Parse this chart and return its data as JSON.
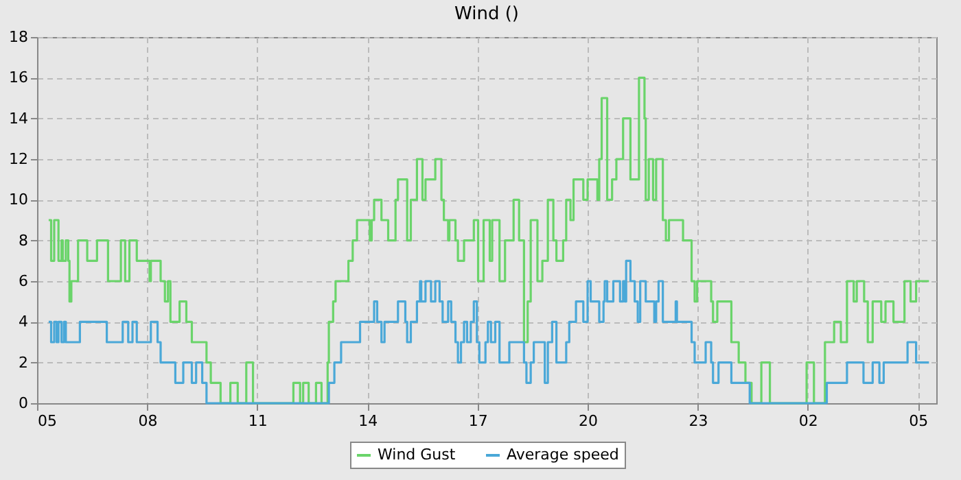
{
  "chart_data": {
    "type": "step",
    "title": "Wind ()",
    "xlim": [
      "--01-01T05:00",
      "--01-02T05:30"
    ],
    "xticks": [
      {
        "value": "--01-01T05:00",
        "label": "05"
      },
      {
        "value": "--01-01T08:00",
        "label": "08"
      },
      {
        "value": "--01-01T11:00",
        "label": "11"
      },
      {
        "value": "--01-01T14:00",
        "label": "14"
      },
      {
        "value": "--01-01T17:00",
        "label": "17"
      },
      {
        "value": "--01-01T20:00",
        "label": "20"
      },
      {
        "value": "--01-01T23:00",
        "label": "23"
      },
      {
        "value": "--01-02T02:00",
        "label": "02"
      },
      {
        "value": "--01-02T05:00",
        "label": "05"
      }
    ],
    "ylim": [
      0,
      18
    ],
    "yticks": [
      0,
      2,
      4,
      6,
      8,
      10,
      12,
      14,
      16,
      18
    ],
    "grid": true,
    "legend": "bottom",
    "series": [
      {
        "name": "Wind Gust",
        "color": "#6ad46a",
        "x": [
          "--01-01T05:19",
          "--01-01T05:23",
          "--01-01T05:28",
          "--01-01T05:35",
          "--01-01T05:40",
          "--01-01T05:42",
          "--01-01T05:47",
          "--01-01T05:51",
          "--01-01T05:53",
          "--01-01T05:56",
          "--01-01T06:07",
          "--01-01T06:22",
          "--01-01T06:38",
          "--01-01T06:56",
          "--01-01T07:17",
          "--01-01T07:24",
          "--01-01T07:31",
          "--01-01T07:43",
          "--01-01T08:04",
          "--01-01T08:06",
          "--01-01T08:22",
          "--01-01T08:29",
          "--01-01T08:34",
          "--01-01T08:38",
          "--01-01T08:53",
          "--01-01T09:04",
          "--01-01T09:13",
          "--01-01T09:37",
          "--01-01T09:44",
          "--01-01T10:00",
          "--01-01T10:16",
          "--01-01T10:28",
          "--01-01T10:42",
          "--01-01T10:53",
          "--01-01T11:59",
          "--01-01T12:10",
          "--01-01T12:15",
          "--01-01T12:24",
          "--01-01T12:36",
          "--01-01T12:45",
          "--01-01T12:55",
          "--01-01T12:57",
          "--01-01T13:04",
          "--01-01T13:08",
          "--01-01T13:29",
          "--01-01T13:36",
          "--01-01T13:43",
          "--01-01T14:04",
          "--01-01T14:07",
          "--01-01T14:11",
          "--01-01T14:23",
          "--01-01T14:34",
          "--01-01T14:46",
          "--01-01T14:50",
          "--01-01T15:05",
          "--01-01T15:11",
          "--01-01T15:21",
          "--01-01T15:30",
          "--01-01T15:35",
          "--01-01T15:51",
          "--01-01T16:01",
          "--01-01T16:05",
          "--01-01T16:12",
          "--01-01T16:14",
          "--01-01T16:24",
          "--01-01T16:28",
          "--01-01T16:38",
          "--01-01T16:54",
          "--01-01T17:01",
          "--01-01T17:10",
          "--01-01T17:20",
          "--01-01T17:24",
          "--01-01T17:36",
          "--01-01T17:45",
          "--01-01T17:59",
          "--01-01T18:08",
          "--01-01T18:16",
          "--01-01T18:22",
          "--01-01T18:27",
          "--01-01T18:38",
          "--01-01T18:46",
          "--01-01T18:55",
          "--01-01T19:04",
          "--01-01T19:09",
          "--01-01T19:20",
          "--01-01T19:25",
          "--01-01T19:32",
          "--01-01T19:37",
          "--01-01T19:53",
          "--01-01T20:00",
          "--01-01T20:16",
          "--01-01T20:19",
          "--01-01T20:23",
          "--01-01T20:32",
          "--01-01T20:35",
          "--01-01T20:40",
          "--01-01T20:47",
          "--01-01T20:58",
          "--01-01T21:10",
          "--01-01T21:24",
          "--01-01T21:33",
          "--01-01T21:35",
          "--01-01T21:40",
          "--01-01T21:47",
          "--01-01T21:52",
          "--01-01T22:03",
          "--01-01T22:08",
          "--01-01T22:13",
          "--01-01T22:36",
          "--01-01T22:50",
          "--01-01T22:55",
          "--01-01T22:59",
          "--01-01T23:22",
          "--01-01T23:25",
          "--01-01T23:32",
          "--01-01T23:55",
          "--01-02T00:07",
          "--01-02T00:18",
          "--01-02T00:28",
          "--01-02T00:44",
          "--01-02T00:58",
          "--01-02T01:58",
          "--01-02T02:10",
          "--01-02T02:28",
          "--01-02T02:43",
          "--01-02T02:54",
          "--01-02T03:04",
          "--01-02T03:15",
          "--01-02T03:20",
          "--01-02T03:32",
          "--01-02T03:38",
          "--01-02T03:46",
          "--01-02T04:00",
          "--01-02T04:07",
          "--01-02T04:20",
          "--01-02T04:38",
          "--01-02T04:48",
          "--01-02T04:57",
          "--01-02T05:18"
        ],
        "values": [
          9,
          7,
          9,
          7,
          8,
          7,
          8,
          7,
          5,
          6,
          8,
          7,
          8,
          6,
          8,
          6,
          8,
          7,
          6,
          7,
          6,
          5,
          6,
          4,
          5,
          4,
          3,
          2,
          1,
          0,
          1,
          0,
          2,
          0,
          1,
          0,
          1,
          0,
          1,
          0,
          2,
          4,
          5,
          6,
          7,
          8,
          9,
          8,
          9,
          10,
          9,
          8,
          10,
          11,
          8,
          10,
          12,
          10,
          11,
          12,
          10,
          9,
          8,
          9,
          8,
          7,
          8,
          9,
          6,
          9,
          7,
          9,
          6,
          8,
          10,
          8,
          3,
          5,
          9,
          6,
          7,
          10,
          8,
          7,
          8,
          10,
          9,
          11,
          10,
          11,
          10,
          12,
          15,
          10,
          10,
          11,
          12,
          14,
          11,
          16,
          14,
          10,
          12,
          10,
          12,
          9,
          8,
          9,
          8,
          6,
          5,
          6,
          5,
          4,
          5,
          3,
          2,
          1,
          0,
          2,
          0,
          2,
          0,
          3,
          4,
          3,
          6,
          5,
          6,
          5,
          3,
          5,
          4,
          5,
          4,
          6,
          5,
          6,
          6
        ]
      },
      {
        "name": "Average speed",
        "color": "#4aa8d8",
        "x": [
          "--01-01T05:19",
          "--01-01T05:23",
          "--01-01T05:28",
          "--01-01T05:32",
          "--01-01T05:35",
          "--01-01T05:40",
          "--01-01T05:44",
          "--01-01T05:47",
          "--01-01T06:10",
          "--01-01T06:54",
          "--01-01T07:20",
          "--01-01T07:29",
          "--01-01T07:36",
          "--01-01T07:43",
          "--01-01T08:06",
          "--01-01T08:17",
          "--01-01T08:22",
          "--01-01T08:46",
          "--01-01T08:59",
          "--01-01T09:13",
          "--01-01T09:20",
          "--01-01T09:30",
          "--01-01T09:37",
          "--01-01T12:57",
          "--01-01T13:06",
          "--01-01T13:17",
          "--01-01T13:48",
          "--01-01T14:11",
          "--01-01T14:16",
          "--01-01T14:23",
          "--01-01T14:28",
          "--01-01T14:50",
          "--01-01T15:02",
          "--01-01T15:05",
          "--01-01T15:11",
          "--01-01T15:21",
          "--01-01T15:26",
          "--01-01T15:28",
          "--01-01T15:35",
          "--01-01T15:44",
          "--01-01T15:51",
          "--01-01T15:58",
          "--01-01T16:03",
          "--01-01T16:12",
          "--01-01T16:17",
          "--01-01T16:24",
          "--01-01T16:28",
          "--01-01T16:33",
          "--01-01T16:38",
          "--01-01T16:43",
          "--01-01T16:49",
          "--01-01T16:54",
          "--01-01T16:59",
          "--01-01T17:03",
          "--01-01T17:13",
          "--01-01T17:17",
          "--01-01T17:22",
          "--01-01T17:29",
          "--01-01T17:36",
          "--01-01T17:52",
          "--01-01T18:16",
          "--01-01T18:20",
          "--01-01T18:27",
          "--01-01T18:32",
          "--01-01T18:50",
          "--01-01T18:55",
          "--01-01T19:02",
          "--01-01T19:09",
          "--01-01T19:25",
          "--01-01T19:30",
          "--01-01T19:41",
          "--01-01T19:53",
          "--01-01T20:00",
          "--01-01T20:05",
          "--01-01T20:19",
          "--01-01T20:26",
          "--01-01T20:28",
          "--01-01T20:32",
          "--01-01T20:42",
          "--01-01T20:53",
          "--01-01T20:58",
          "--01-01T21:01",
          "--01-01T21:03",
          "--01-01T21:10",
          "--01-01T21:17",
          "--01-01T21:22",
          "--01-01T21:26",
          "--01-01T21:35",
          "--01-01T21:49",
          "--01-01T21:52",
          "--01-01T21:56",
          "--01-01T22:03",
          "--01-01T22:24",
          "--01-01T22:26",
          "--01-01T22:50",
          "--01-01T22:55",
          "--01-01T23:13",
          "--01-01T23:22",
          "--01-01T23:25",
          "--01-01T23:34",
          "--01-01T23:55",
          "--01-02T00:25",
          "--01-02T02:31",
          "--01-02T03:04",
          "--01-02T03:31",
          "--01-02T03:46",
          "--01-02T03:57",
          "--01-02T04:04",
          "--01-02T04:43",
          "--01-02T04:57",
          "--01-02T05:18"
        ],
        "values": [
          4,
          3,
          4,
          3,
          4,
          3,
          4,
          3,
          4,
          3,
          4,
          3,
          4,
          3,
          4,
          3,
          2,
          1,
          2,
          1,
          2,
          1,
          0,
          1,
          2,
          3,
          4,
          5,
          4,
          3,
          4,
          5,
          4,
          3,
          4,
          5,
          6,
          5,
          6,
          5,
          6,
          5,
          4,
          5,
          4,
          3,
          2,
          3,
          4,
          3,
          4,
          5,
          3,
          2,
          3,
          4,
          3,
          4,
          2,
          3,
          2,
          1,
          2,
          3,
          1,
          3,
          4,
          2,
          3,
          4,
          5,
          4,
          6,
          5,
          4,
          5,
          6,
          5,
          6,
          5,
          6,
          5,
          7,
          6,
          5,
          4,
          6,
          5,
          4,
          5,
          6,
          4,
          5,
          4,
          3,
          2,
          3,
          2,
          1,
          2,
          1,
          0,
          1,
          2,
          1,
          2,
          1,
          2,
          3,
          2,
          2
        ]
      }
    ]
  }
}
